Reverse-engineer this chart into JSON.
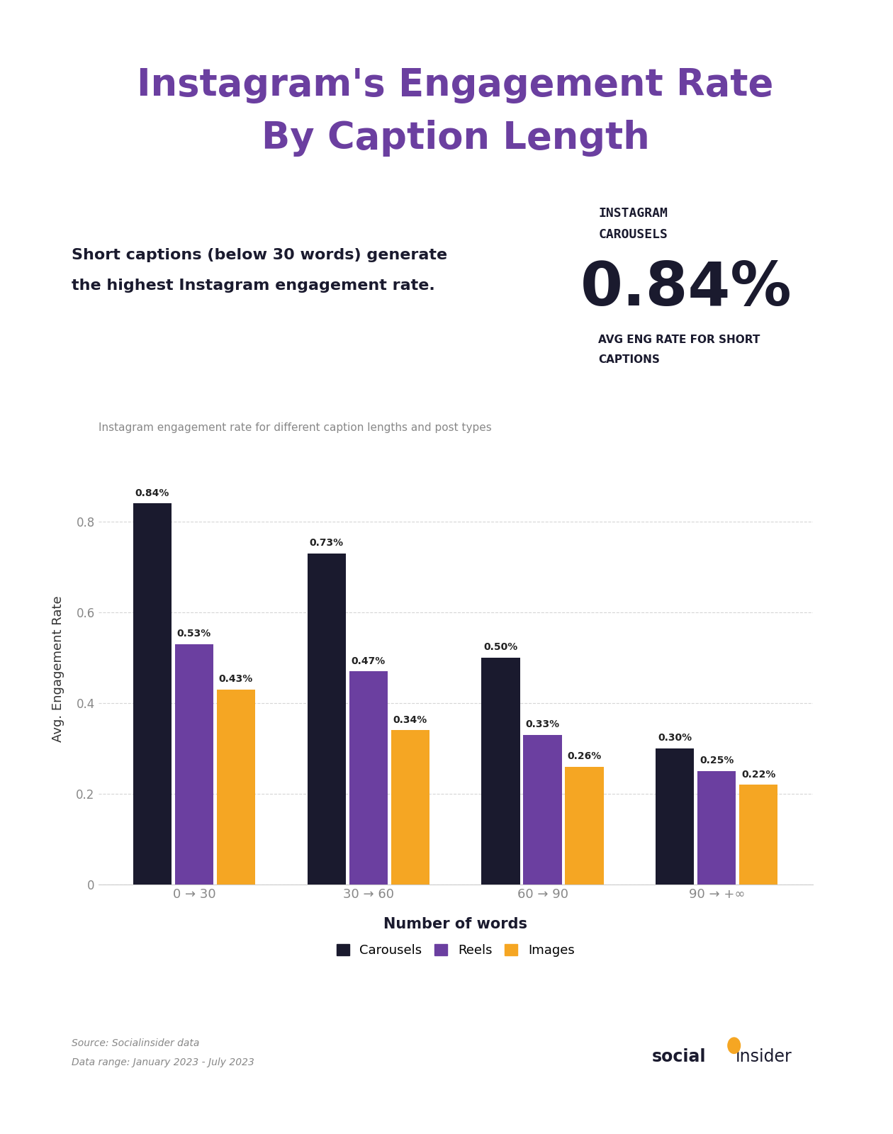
{
  "title_line1": "Instagram's Engagement Rate",
  "title_line2": "By Caption Length",
  "title_color": "#6B3FA0",
  "bg_color": "#FFFFFF",
  "highlight_label_line1": "INSTAGRAM",
  "highlight_label_line2": "CAROUSELS",
  "highlight_value": "0.84%",
  "highlight_sub_line1": "AVG ENG RATE FOR SHORT",
  "highlight_sub_line2": "CAPTIONS",
  "insight_text_line1": "Short captions (below 30 words) generate",
  "insight_text_line2": "the highest Instagram engagement rate.",
  "chart_subtitle": "Instagram engagement rate for different caption lengths and post types",
  "categories": [
    "0 → 30",
    "30 → 60",
    "60 → 90",
    "90 → +∞"
  ],
  "carousels": [
    0.84,
    0.73,
    0.5,
    0.3
  ],
  "reels": [
    0.53,
    0.47,
    0.33,
    0.25
  ],
  "images": [
    0.43,
    0.34,
    0.26,
    0.22
  ],
  "bar_color_carousels": "#1A1A2E",
  "bar_color_reels": "#6B3FA0",
  "bar_color_images": "#F5A623",
  "ylabel": "Avg. Engagement Rate",
  "xlabel": "Number of words",
  "ylim": [
    0,
    0.95
  ],
  "yticks": [
    0,
    0.2,
    0.4,
    0.6,
    0.8
  ],
  "legend_labels": [
    "Carousels",
    "Reels",
    "Images"
  ],
  "source_line1": "Source: Socialinsider data",
  "source_line2": "Data range: January 2023 - July 2023",
  "grid_color": "#CCCCCC",
  "tick_color": "#888888",
  "axis_label_color": "#333333"
}
